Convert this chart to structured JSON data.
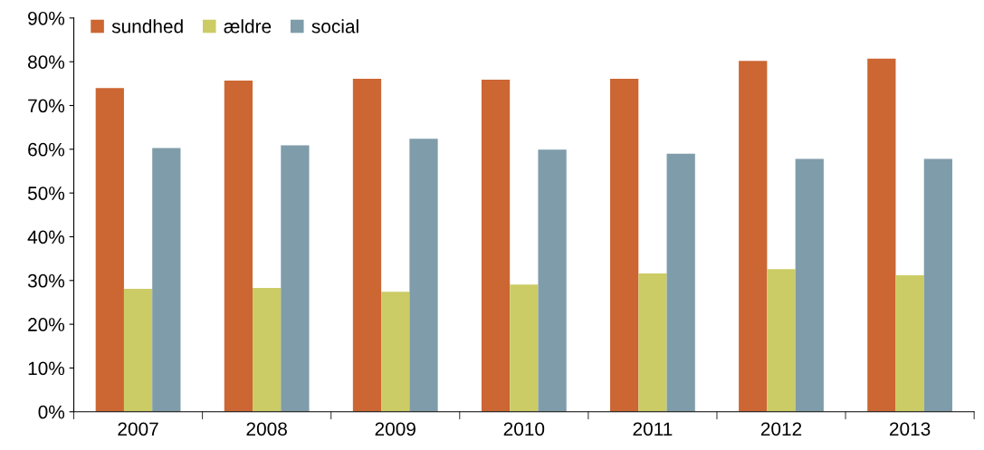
{
  "chart_data": {
    "type": "bar",
    "categories": [
      "2007",
      "2008",
      "2009",
      "2010",
      "2011",
      "2012",
      "2013"
    ],
    "series": [
      {
        "name": "sundhed",
        "color": "#cc6633",
        "values": [
          74.0,
          75.7,
          76.1,
          75.9,
          76.1,
          80.2,
          80.7
        ]
      },
      {
        "name": "ældre",
        "color": "#cccc66",
        "values": [
          28.1,
          28.3,
          27.4,
          29.1,
          31.6,
          32.6,
          31.2
        ]
      },
      {
        "name": "social",
        "color": "#7f9caa",
        "values": [
          60.3,
          60.9,
          62.4,
          59.9,
          59.0,
          57.8,
          57.8
        ]
      }
    ],
    "ylim": [
      0,
      90
    ],
    "yticks": [
      {
        "value": 0,
        "label": "0%"
      },
      {
        "value": 10,
        "label": "10%"
      },
      {
        "value": 20,
        "label": "20%"
      },
      {
        "value": 30,
        "label": "30%"
      },
      {
        "value": 40,
        "label": "40%"
      },
      {
        "value": 50,
        "label": "50%"
      },
      {
        "value": 60,
        "label": "60%"
      },
      {
        "value": 70,
        "label": "70%"
      },
      {
        "value": 80,
        "label": "80%"
      },
      {
        "value": 90,
        "label": "90%"
      }
    ],
    "grid": false,
    "legend": "top left"
  }
}
